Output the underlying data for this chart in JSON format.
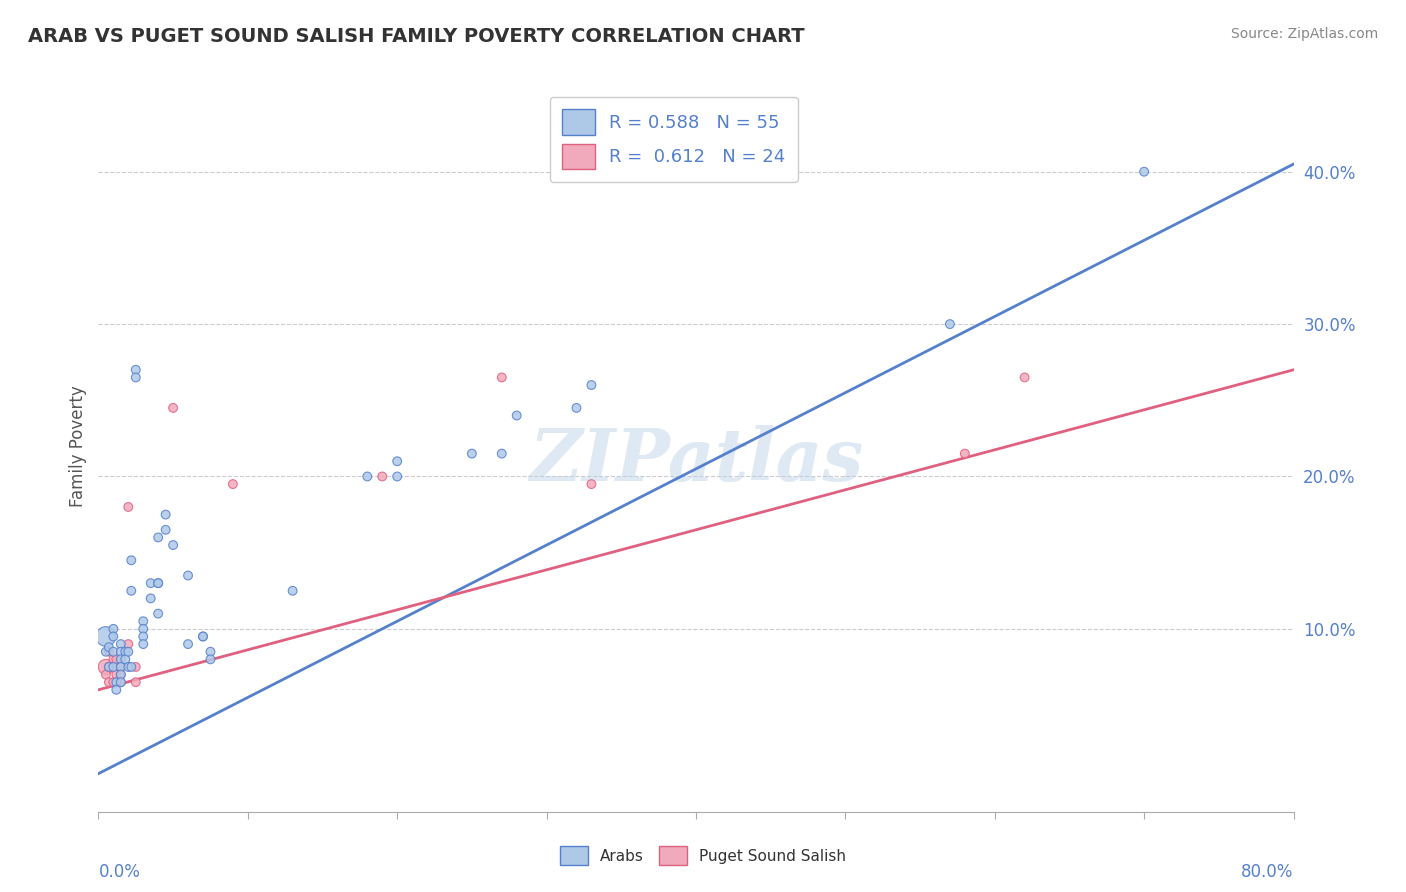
{
  "title": "ARAB VS PUGET SOUND SALISH FAMILY POVERTY CORRELATION CHART",
  "source": "Source: ZipAtlas.com",
  "ylabel": "Family Poverty",
  "xlim": [
    0.0,
    0.8
  ],
  "ylim": [
    -0.02,
    0.46
  ],
  "ytick_vals": [
    0.0,
    0.1,
    0.2,
    0.3,
    0.4
  ],
  "ytick_labels": [
    "",
    "10.0%",
    "20.0%",
    "30.0%",
    "40.0%"
  ],
  "xtick_vals": [
    0.0,
    0.1,
    0.2,
    0.3,
    0.4,
    0.5,
    0.6,
    0.7,
    0.8
  ],
  "legend_r1": "0.588",
  "legend_n1": "55",
  "legend_r2": "0.612",
  "legend_n2": "24",
  "arab_color": "#aec8e8",
  "salish_color": "#f0aabb",
  "arab_line_color": "#5580cc",
  "salish_line_color": "#e06080",
  "watermark": "ZIPatlas",
  "arab_line_x0": 0.0,
  "arab_line_y0": 0.005,
  "arab_line_x1": 0.8,
  "arab_line_y1": 0.405,
  "salish_line_x0": 0.0,
  "salish_line_y0": 0.06,
  "salish_line_x1": 0.8,
  "salish_line_y1": 0.27,
  "arab_scatter": [
    [
      0.005,
      0.095
    ],
    [
      0.005,
      0.085
    ],
    [
      0.007,
      0.075
    ],
    [
      0.007,
      0.088
    ],
    [
      0.01,
      0.1
    ],
    [
      0.01,
      0.095
    ],
    [
      0.01,
      0.085
    ],
    [
      0.01,
      0.075
    ],
    [
      0.012,
      0.065
    ],
    [
      0.012,
      0.06
    ],
    [
      0.015,
      0.09
    ],
    [
      0.015,
      0.085
    ],
    [
      0.015,
      0.08
    ],
    [
      0.015,
      0.075
    ],
    [
      0.015,
      0.07
    ],
    [
      0.015,
      0.065
    ],
    [
      0.018,
      0.085
    ],
    [
      0.018,
      0.08
    ],
    [
      0.02,
      0.085
    ],
    [
      0.02,
      0.075
    ],
    [
      0.022,
      0.075
    ],
    [
      0.022,
      0.145
    ],
    [
      0.022,
      0.125
    ],
    [
      0.025,
      0.27
    ],
    [
      0.025,
      0.265
    ],
    [
      0.03,
      0.105
    ],
    [
      0.03,
      0.1
    ],
    [
      0.03,
      0.095
    ],
    [
      0.03,
      0.09
    ],
    [
      0.035,
      0.12
    ],
    [
      0.035,
      0.13
    ],
    [
      0.04,
      0.13
    ],
    [
      0.04,
      0.13
    ],
    [
      0.04,
      0.11
    ],
    [
      0.04,
      0.16
    ],
    [
      0.045,
      0.175
    ],
    [
      0.045,
      0.165
    ],
    [
      0.05,
      0.155
    ],
    [
      0.06,
      0.135
    ],
    [
      0.06,
      0.09
    ],
    [
      0.07,
      0.095
    ],
    [
      0.07,
      0.095
    ],
    [
      0.075,
      0.085
    ],
    [
      0.075,
      0.08
    ],
    [
      0.13,
      0.125
    ],
    [
      0.18,
      0.2
    ],
    [
      0.2,
      0.21
    ],
    [
      0.2,
      0.2
    ],
    [
      0.25,
      0.215
    ],
    [
      0.27,
      0.215
    ],
    [
      0.28,
      0.24
    ],
    [
      0.32,
      0.245
    ],
    [
      0.33,
      0.26
    ],
    [
      0.57,
      0.3
    ],
    [
      0.7,
      0.4
    ]
  ],
  "arab_sizes": [
    200,
    40,
    40,
    40,
    40,
    40,
    40,
    40,
    40,
    40,
    40,
    40,
    40,
    40,
    40,
    40,
    40,
    40,
    40,
    40,
    40,
    40,
    40,
    40,
    40,
    40,
    40,
    40,
    40,
    40,
    40,
    40,
    40,
    40,
    40,
    40,
    40,
    40,
    40,
    40,
    40,
    40,
    40,
    40,
    40,
    40,
    40,
    40,
    40,
    40,
    40,
    40,
    40,
    40,
    40
  ],
  "salish_scatter": [
    [
      0.005,
      0.075
    ],
    [
      0.005,
      0.07
    ],
    [
      0.007,
      0.065
    ],
    [
      0.007,
      0.085
    ],
    [
      0.007,
      0.075
    ],
    [
      0.01,
      0.065
    ],
    [
      0.01,
      0.075
    ],
    [
      0.01,
      0.08
    ],
    [
      0.012,
      0.08
    ],
    [
      0.012,
      0.07
    ],
    [
      0.015,
      0.065
    ],
    [
      0.015,
      0.075
    ],
    [
      0.015,
      0.07
    ],
    [
      0.02,
      0.18
    ],
    [
      0.02,
      0.09
    ],
    [
      0.025,
      0.075
    ],
    [
      0.025,
      0.065
    ],
    [
      0.05,
      0.245
    ],
    [
      0.09,
      0.195
    ],
    [
      0.19,
      0.2
    ],
    [
      0.27,
      0.265
    ],
    [
      0.33,
      0.195
    ],
    [
      0.58,
      0.215
    ],
    [
      0.62,
      0.265
    ]
  ],
  "salish_sizes": [
    120,
    40,
    40,
    40,
    40,
    40,
    40,
    40,
    40,
    40,
    40,
    40,
    40,
    40,
    40,
    40,
    40,
    40,
    40,
    40,
    40,
    40,
    40,
    40
  ],
  "background_color": "#ffffff",
  "grid_color": "#cccccc",
  "spine_color": "#aaaaaa",
  "label_color": "#5580cc",
  "title_color": "#333333",
  "ylabel_color": "#555555"
}
